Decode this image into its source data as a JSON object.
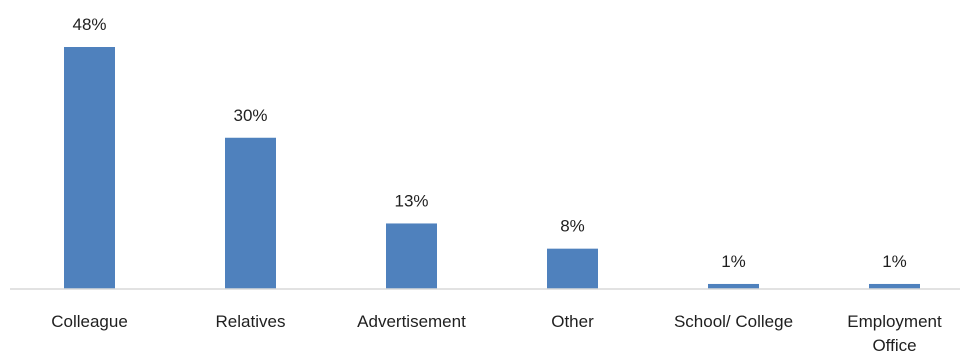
{
  "chart_data": {
    "type": "bar",
    "categories": [
      "Colleague",
      "Relatives",
      "Advertisement",
      "Other",
      "School/ College",
      "Employment Office"
    ],
    "category_lines": [
      [
        "Colleague"
      ],
      [
        "Relatives"
      ],
      [
        "Advertisement"
      ],
      [
        "Other"
      ],
      [
        "School/ College"
      ],
      [
        "Employment",
        "Office"
      ]
    ],
    "values": [
      48,
      30,
      13,
      8,
      1,
      1
    ],
    "data_labels": [
      "48%",
      "30%",
      "13%",
      "8%",
      "1%",
      "1%"
    ],
    "unit": "%",
    "title": "",
    "xlabel": "",
    "ylabel": "",
    "ylim": [
      0,
      48
    ],
    "grid": false,
    "legend": "none",
    "bar_color": "#4f81bd",
    "axis_color": "#d9d9d9"
  }
}
